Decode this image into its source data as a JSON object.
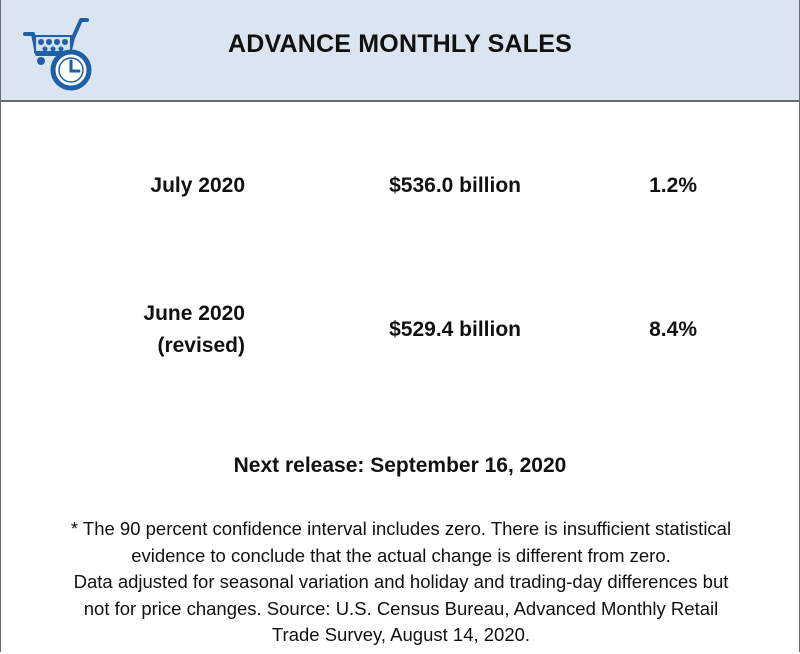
{
  "header": {
    "title": "ADVANCE MONTHLY SALES",
    "logo_icon": "shopping-cart-clock-icon",
    "background_color": "#dbe5f1",
    "icon_color": "#1f5fa6"
  },
  "rows": [
    {
      "period_line1": "July 2020",
      "period_line2": "",
      "value": "$536.0 billion",
      "change": "1.2%"
    },
    {
      "period_line1": "June 2020",
      "period_line2": "(revised)",
      "value": "$529.4 billion",
      "change": "8.4%"
    }
  ],
  "next_release": "Next release: September 16, 2020",
  "footnote": {
    "line1": "* The 90 percent confidence interval includes zero. There is insufficient statistical",
    "line2": "evidence to conclude that the actual change is different from zero.",
    "line3": "Data adjusted for seasonal variation and holiday and trading-day differences but",
    "line4": "not for price changes. Source: U.S. Census Bureau, Advanced Monthly Retail",
    "line5": "Trade Survey, August 14, 2020."
  }
}
